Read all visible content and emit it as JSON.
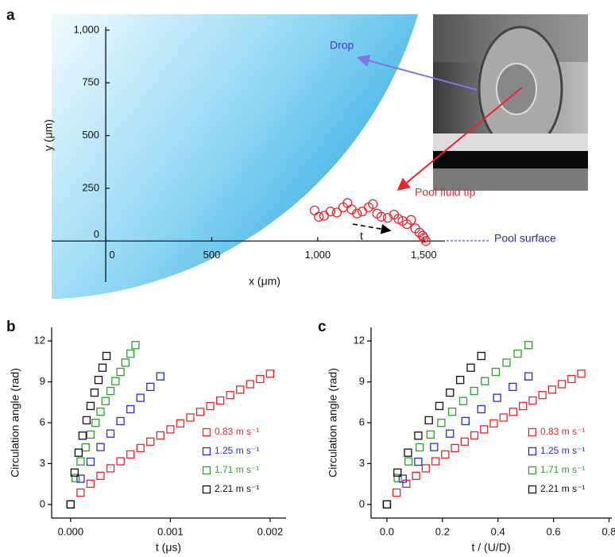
{
  "chart_data": [
    {
      "type": "scatter",
      "panel_label": "a",
      "marker": "circle",
      "xlabel": "x (μm)",
      "ylabel": "y (μm)",
      "xlim": [
        -255,
        1600
      ],
      "ylim": [
        -270,
        1075
      ],
      "xticks": [
        0,
        500,
        {
          "value": 1000,
          "label": "1,000"
        },
        {
          "value": 1500,
          "label": "1,500"
        }
      ],
      "yticks": [
        0,
        250,
        500,
        750,
        {
          "value": 1000,
          "label": "1,000"
        }
      ],
      "annotations": [
        "Drop",
        "Pool fluid tip",
        "t",
        "Pool surface"
      ],
      "series": [
        {
          "color": "#e8262b",
          "x": [
            985,
            1005,
            1030,
            1060,
            1090,
            1120,
            1140,
            1160,
            1185,
            1210,
            1240,
            1260,
            1280,
            1300,
            1330,
            1360,
            1380,
            1400,
            1420,
            1440,
            1460,
            1480,
            1495,
            1500,
            1510
          ],
          "values": [
            145,
            115,
            120,
            140,
            135,
            160,
            180,
            150,
            130,
            140,
            160,
            175,
            130,
            115,
            110,
            125,
            105,
            95,
            80,
            100,
            60,
            40,
            25,
            15,
            0
          ]
        }
      ]
    },
    {
      "type": "scatter",
      "panel_label": "b",
      "marker": "square",
      "xlabel": "t (μs)",
      "ylabel": "Circulation angle (rad)",
      "xlim": [
        -0.00019,
        0.00216
      ],
      "ylim": [
        -1,
        13
      ],
      "xticks": [
        {
          "value": 0,
          "label": "0.000"
        },
        0.001,
        0.002
      ],
      "yticks": [
        0,
        3,
        6,
        9,
        12
      ],
      "legend": "lower right",
      "series": [
        {
          "name": "0.83 m s⁻¹",
          "color": "#e8262b",
          "x": [
            0,
            0.0001,
            0.0002,
            0.0003,
            0.0004,
            0.0005,
            0.0006,
            0.0007,
            0.0008,
            0.0009,
            0.001,
            0.0011,
            0.0012,
            0.0013,
            0.0014,
            0.0015,
            0.0016,
            0.0017,
            0.0018,
            0.0019,
            0.002
          ],
          "values": [
            0,
            0.87,
            1.52,
            2.1,
            2.65,
            3.17,
            3.67,
            4.14,
            4.61,
            5.07,
            5.51,
            5.95,
            6.38,
            6.8,
            7.22,
            7.63,
            8.03,
            8.43,
            8.83,
            9.21,
            9.6
          ]
        },
        {
          "name": "1.25 m s⁻¹",
          "color": "#2b2bd9",
          "x": [
            0,
            0.0001,
            0.0002,
            0.0003,
            0.0004,
            0.0005,
            0.0006,
            0.0007,
            0.0008,
            0.0009
          ],
          "values": [
            0,
            1.89,
            3.14,
            4.21,
            5.2,
            6.12,
            6.99,
            7.83,
            8.63,
            9.4
          ]
        },
        {
          "name": "1.71 m s⁻¹",
          "color": "#2ca02c",
          "x": [
            0,
            5e-05,
            0.0001,
            0.00015,
            0.0002,
            0.00025,
            0.0003,
            0.00035,
            0.0004,
            0.00045,
            0.0005,
            0.00055,
            0.0006,
            0.00065
          ],
          "values": [
            0,
            1.94,
            3.16,
            4.19,
            5.13,
            5.99,
            6.81,
            7.59,
            8.33,
            9.05,
            9.73,
            10.41,
            11.07,
            11.7
          ]
        },
        {
          "name": "2.21 m s⁻¹",
          "color": "#111111",
          "x": [
            0,
            4e-05,
            8e-05,
            0.00012,
            0.00016,
            0.0002,
            0.00024,
            0.00028,
            0.00032,
            0.00036
          ],
          "values": [
            0,
            2.34,
            3.8,
            5.05,
            6.18,
            7.23,
            8.21,
            9.14,
            10.04,
            10.9
          ]
        }
      ]
    },
    {
      "type": "scatter",
      "panel_label": "c",
      "marker": "square",
      "xlabel": "t / (U/D)",
      "ylabel": "Circulation angle (rad)",
      "xlim": [
        -0.057,
        0.81
      ],
      "ylim": [
        -1,
        13
      ],
      "xticks": [
        {
          "value": 0,
          "label": "0.0"
        },
        0.2,
        0.4,
        0.6,
        0.8
      ],
      "yticks": [
        0,
        3,
        6,
        9,
        12
      ],
      "legend": "lower right",
      "series": [
        {
          "name": "0.83 m s⁻¹",
          "color": "#e8262b",
          "x": [
            0,
            0.035,
            0.07,
            0.105,
            0.14,
            0.175,
            0.21,
            0.245,
            0.28,
            0.315,
            0.35,
            0.385,
            0.42,
            0.455,
            0.49,
            0.525,
            0.56,
            0.595,
            0.63,
            0.665,
            0.7
          ],
          "values": [
            0,
            0.87,
            1.52,
            2.1,
            2.65,
            3.17,
            3.67,
            4.14,
            4.61,
            5.07,
            5.51,
            5.95,
            6.38,
            6.8,
            7.22,
            7.63,
            8.03,
            8.43,
            8.83,
            9.21,
            9.6
          ]
        },
        {
          "name": "1.25 m s⁻¹",
          "color": "#2b2bd9",
          "x": [
            0,
            0.057,
            0.113,
            0.17,
            0.227,
            0.283,
            0.34,
            0.397,
            0.453,
            0.51
          ],
          "values": [
            0,
            1.89,
            3.14,
            4.21,
            5.2,
            6.12,
            6.99,
            7.83,
            8.63,
            9.4
          ]
        },
        {
          "name": "1.71 m s⁻¹",
          "color": "#2ca02c",
          "x": [
            0,
            0.039,
            0.078,
            0.118,
            0.157,
            0.196,
            0.235,
            0.275,
            0.314,
            0.353,
            0.392,
            0.431,
            0.471,
            0.51
          ],
          "values": [
            0,
            1.94,
            3.16,
            4.19,
            5.13,
            5.99,
            6.81,
            7.59,
            8.33,
            9.05,
            9.73,
            10.41,
            11.07,
            11.7
          ]
        },
        {
          "name": "2.21 m s⁻¹",
          "color": "#111111",
          "x": [
            0,
            0.038,
            0.076,
            0.113,
            0.151,
            0.189,
            0.227,
            0.264,
            0.302,
            0.34
          ],
          "values": [
            0,
            2.34,
            3.8,
            5.05,
            6.18,
            7.23,
            8.21,
            9.14,
            10.04,
            10.9
          ]
        }
      ]
    }
  ]
}
